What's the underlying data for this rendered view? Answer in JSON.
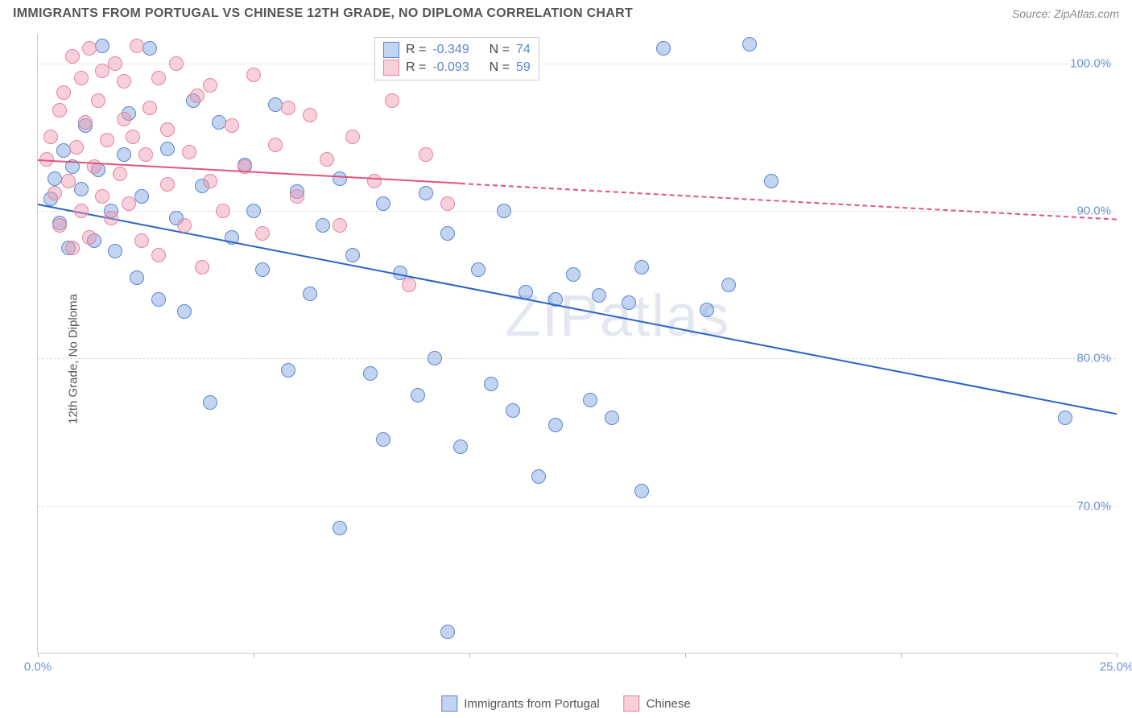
{
  "title": "IMMIGRANTS FROM PORTUGAL VS CHINESE 12TH GRADE, NO DIPLOMA CORRELATION CHART",
  "source_label": "Source: ZipAtlas.com",
  "y_axis_label": "12th Grade, No Diploma",
  "watermark": "ZIPatlas",
  "chart": {
    "type": "scatter",
    "xlim": [
      0,
      25
    ],
    "ylim": [
      60,
      102
    ],
    "x_ticks": [
      0,
      5,
      10,
      15,
      20,
      25
    ],
    "x_tick_labels": [
      "0.0%",
      "",
      "",
      "",
      "",
      "25.0%"
    ],
    "y_ticks": [
      70,
      80,
      90,
      100
    ],
    "y_tick_labels": [
      "70.0%",
      "80.0%",
      "90.0%",
      "100.0%"
    ],
    "background_color": "#ffffff",
    "grid_color": "#dddddd",
    "series": [
      {
        "name": "Immigrants from Portugal",
        "legend_label": "Immigrants from Portugal",
        "fill": "rgba(120,160,220,0.45)",
        "stroke": "#5b84d8",
        "r_value": "-0.349",
        "n_value": "74",
        "trend": {
          "x1": 0,
          "y1": 90.5,
          "x2": 25,
          "y2": 76.3,
          "color": "#2a62c9",
          "solid_until_x": 25
        },
        "points": [
          [
            0.3,
            90.8
          ],
          [
            0.4,
            92.2
          ],
          [
            0.6,
            94.1
          ],
          [
            0.5,
            89.2
          ],
          [
            0.7,
            87.5
          ],
          [
            0.8,
            93.0
          ],
          [
            1.0,
            91.5
          ],
          [
            1.1,
            95.8
          ],
          [
            1.3,
            88.0
          ],
          [
            1.4,
            92.8
          ],
          [
            1.5,
            101.2
          ],
          [
            1.7,
            90.0
          ],
          [
            1.8,
            87.3
          ],
          [
            2.0,
            93.8
          ],
          [
            2.1,
            96.6
          ],
          [
            2.3,
            85.5
          ],
          [
            2.4,
            91.0
          ],
          [
            2.6,
            101.0
          ],
          [
            2.8,
            84.0
          ],
          [
            3.0,
            94.2
          ],
          [
            3.2,
            89.5
          ],
          [
            3.4,
            83.2
          ],
          [
            3.6,
            97.5
          ],
          [
            3.8,
            91.7
          ],
          [
            4.0,
            77.0
          ],
          [
            4.2,
            96.0
          ],
          [
            4.5,
            88.2
          ],
          [
            4.8,
            93.1
          ],
          [
            5.0,
            90.0
          ],
          [
            5.2,
            86.0
          ],
          [
            5.5,
            97.2
          ],
          [
            5.8,
            79.2
          ],
          [
            6.0,
            91.3
          ],
          [
            6.3,
            84.4
          ],
          [
            6.6,
            89.0
          ],
          [
            7.0,
            92.2
          ],
          [
            7.0,
            68.5
          ],
          [
            7.3,
            87.0
          ],
          [
            7.7,
            79.0
          ],
          [
            8.0,
            90.5
          ],
          [
            8.0,
            74.5
          ],
          [
            8.4,
            85.8
          ],
          [
            8.8,
            77.5
          ],
          [
            9.0,
            91.2
          ],
          [
            9.2,
            80.0
          ],
          [
            9.5,
            88.5
          ],
          [
            9.5,
            61.5
          ],
          [
            9.8,
            74.0
          ],
          [
            10.2,
            86.0
          ],
          [
            10.5,
            78.3
          ],
          [
            10.8,
            90.0
          ],
          [
            11.0,
            76.5
          ],
          [
            11.3,
            84.5
          ],
          [
            11.6,
            72.0
          ],
          [
            12.0,
            75.5
          ],
          [
            12.0,
            84.0
          ],
          [
            12.4,
            85.7
          ],
          [
            12.8,
            77.2
          ],
          [
            13.0,
            84.3
          ],
          [
            13.3,
            76.0
          ],
          [
            13.7,
            83.8
          ],
          [
            14.0,
            86.2
          ],
          [
            14.0,
            71.0
          ],
          [
            14.5,
            101.0
          ],
          [
            15.5,
            83.3
          ],
          [
            16.0,
            85.0
          ],
          [
            16.5,
            101.3
          ],
          [
            17.0,
            92.0
          ],
          [
            23.8,
            76.0
          ]
        ]
      },
      {
        "name": "Chinese",
        "legend_label": "Chinese",
        "fill": "rgba(240,150,175,0.45)",
        "stroke": "#e7839d",
        "r_value": "-0.093",
        "n_value": "59",
        "trend": {
          "x1": 0,
          "y1": 93.5,
          "x2": 25,
          "y2": 89.5,
          "color": "#e2547b",
          "solid_until_x": 9.8
        },
        "points": [
          [
            0.2,
            93.5
          ],
          [
            0.3,
            95.0
          ],
          [
            0.4,
            91.2
          ],
          [
            0.5,
            96.8
          ],
          [
            0.5,
            89.0
          ],
          [
            0.6,
            98.0
          ],
          [
            0.7,
            92.0
          ],
          [
            0.8,
            100.5
          ],
          [
            0.8,
            87.5
          ],
          [
            0.9,
            94.3
          ],
          [
            1.0,
            99.0
          ],
          [
            1.0,
            90.0
          ],
          [
            1.1,
            96.0
          ],
          [
            1.2,
            101.0
          ],
          [
            1.2,
            88.2
          ],
          [
            1.3,
            93.0
          ],
          [
            1.4,
            97.5
          ],
          [
            1.5,
            91.0
          ],
          [
            1.5,
            99.5
          ],
          [
            1.6,
            94.8
          ],
          [
            1.7,
            89.5
          ],
          [
            1.8,
            100.0
          ],
          [
            1.9,
            92.5
          ],
          [
            2.0,
            96.2
          ],
          [
            2.0,
            98.8
          ],
          [
            2.1,
            90.5
          ],
          [
            2.2,
            95.0
          ],
          [
            2.3,
            101.2
          ],
          [
            2.4,
            88.0
          ],
          [
            2.5,
            93.8
          ],
          [
            2.6,
            97.0
          ],
          [
            2.8,
            99.0
          ],
          [
            2.8,
            87.0
          ],
          [
            3.0,
            91.8
          ],
          [
            3.0,
            95.5
          ],
          [
            3.2,
            100.0
          ],
          [
            3.4,
            89.0
          ],
          [
            3.5,
            94.0
          ],
          [
            3.7,
            97.8
          ],
          [
            3.8,
            86.2
          ],
          [
            4.0,
            92.0
          ],
          [
            4.0,
            98.5
          ],
          [
            4.3,
            90.0
          ],
          [
            4.5,
            95.8
          ],
          [
            4.8,
            93.0
          ],
          [
            5.0,
            99.2
          ],
          [
            5.2,
            88.5
          ],
          [
            5.5,
            94.5
          ],
          [
            5.8,
            97.0
          ],
          [
            6.0,
            91.0
          ],
          [
            6.3,
            96.5
          ],
          [
            6.7,
            93.5
          ],
          [
            7.0,
            89.0
          ],
          [
            7.3,
            95.0
          ],
          [
            7.8,
            92.0
          ],
          [
            8.2,
            97.5
          ],
          [
            8.6,
            85.0
          ],
          [
            9.0,
            93.8
          ],
          [
            9.5,
            90.5
          ]
        ]
      }
    ]
  },
  "stat_legend": {
    "r_label": "R =",
    "n_label": "N ="
  }
}
